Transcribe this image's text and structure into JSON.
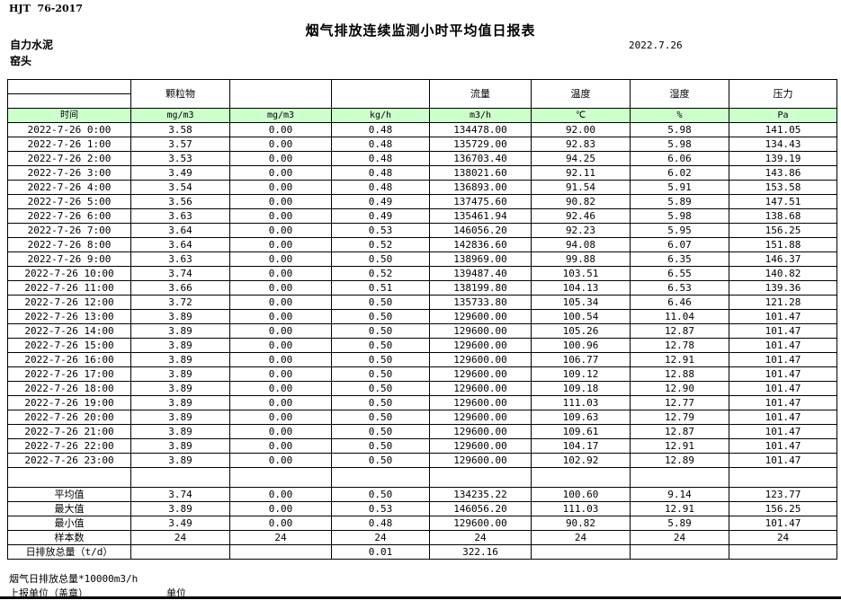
{
  "header": {
    "standard": "HJT  76-2017",
    "title": "烟气排放连续监测小时平均值日报表",
    "company": "自力水泥",
    "date": "2022.7.26",
    "location": "窑头"
  },
  "colors": {
    "header_green": "#ccffcc",
    "border": "#000000",
    "background": "#ffffff"
  },
  "table": {
    "columns": {
      "time_header": "时间",
      "pollutants": [
        "颗粒物",
        "",
        "",
        "流量",
        "温度",
        "湿度",
        "压力"
      ],
      "units": [
        "mg/m3",
        "mg/m3",
        "kg/h",
        "m3/h",
        "℃",
        "%",
        "Pa"
      ]
    },
    "rows": [
      {
        "time": "2022-7-26 0:00",
        "values": [
          "3.58",
          "0.00",
          "0.48",
          "134478.00",
          "92.00",
          "5.98",
          "141.05"
        ]
      },
      {
        "time": "2022-7-26 1:00",
        "values": [
          "3.57",
          "0.00",
          "0.48",
          "135729.00",
          "92.83",
          "5.98",
          "134.43"
        ]
      },
      {
        "time": "2022-7-26 2:00",
        "values": [
          "3.53",
          "0.00",
          "0.48",
          "136703.40",
          "94.25",
          "6.06",
          "139.19"
        ]
      },
      {
        "time": "2022-7-26 3:00",
        "values": [
          "3.49",
          "0.00",
          "0.48",
          "138021.60",
          "92.11",
          "6.02",
          "143.86"
        ]
      },
      {
        "time": "2022-7-26 4:00",
        "values": [
          "3.54",
          "0.00",
          "0.48",
          "136893.00",
          "91.54",
          "5.91",
          "153.58"
        ]
      },
      {
        "time": "2022-7-26 5:00",
        "values": [
          "3.56",
          "0.00",
          "0.49",
          "137475.60",
          "90.82",
          "5.89",
          "147.51"
        ]
      },
      {
        "time": "2022-7-26 6:00",
        "values": [
          "3.63",
          "0.00",
          "0.49",
          "135461.94",
          "92.46",
          "5.98",
          "138.68"
        ]
      },
      {
        "time": "2022-7-26 7:00",
        "values": [
          "3.64",
          "0.00",
          "0.53",
          "146056.20",
          "92.23",
          "5.95",
          "156.25"
        ]
      },
      {
        "time": "2022-7-26 8:00",
        "values": [
          "3.64",
          "0.00",
          "0.52",
          "142836.60",
          "94.08",
          "6.07",
          "151.88"
        ]
      },
      {
        "time": "2022-7-26 9:00",
        "values": [
          "3.63",
          "0.00",
          "0.50",
          "138969.00",
          "99.88",
          "6.35",
          "146.37"
        ]
      },
      {
        "time": "2022-7-26 10:00",
        "values": [
          "3.74",
          "0.00",
          "0.52",
          "139487.40",
          "103.51",
          "6.55",
          "140.82"
        ]
      },
      {
        "time": "2022-7-26 11:00",
        "values": [
          "3.66",
          "0.00",
          "0.51",
          "138199.80",
          "104.13",
          "6.53",
          "139.36"
        ]
      },
      {
        "time": "2022-7-26 12:00",
        "values": [
          "3.72",
          "0.00",
          "0.50",
          "135733.80",
          "105.34",
          "6.46",
          "121.28"
        ]
      },
      {
        "time": "2022-7-26 13:00",
        "values": [
          "3.89",
          "0.00",
          "0.50",
          "129600.00",
          "100.54",
          "11.04",
          "101.47"
        ]
      },
      {
        "time": "2022-7-26 14:00",
        "values": [
          "3.89",
          "0.00",
          "0.50",
          "129600.00",
          "105.26",
          "12.87",
          "101.47"
        ]
      },
      {
        "time": "2022-7-26 15:00",
        "values": [
          "3.89",
          "0.00",
          "0.50",
          "129600.00",
          "100.96",
          "12.78",
          "101.47"
        ]
      },
      {
        "time": "2022-7-26 16:00",
        "values": [
          "3.89",
          "0.00",
          "0.50",
          "129600.00",
          "106.77",
          "12.91",
          "101.47"
        ]
      },
      {
        "time": "2022-7-26 17:00",
        "values": [
          "3.89",
          "0.00",
          "0.50",
          "129600.00",
          "109.12",
          "12.88",
          "101.47"
        ]
      },
      {
        "time": "2022-7-26 18:00",
        "values": [
          "3.89",
          "0.00",
          "0.50",
          "129600.00",
          "109.18",
          "12.90",
          "101.47"
        ]
      },
      {
        "time": "2022-7-26 19:00",
        "values": [
          "3.89",
          "0.00",
          "0.50",
          "129600.00",
          "111.03",
          "12.77",
          "101.47"
        ]
      },
      {
        "time": "2022-7-26 20:00",
        "values": [
          "3.89",
          "0.00",
          "0.50",
          "129600.00",
          "109.63",
          "12.79",
          "101.47"
        ]
      },
      {
        "time": "2022-7-26 21:00",
        "values": [
          "3.89",
          "0.00",
          "0.50",
          "129600.00",
          "109.61",
          "12.87",
          "101.47"
        ]
      },
      {
        "time": "2022-7-26 22:00",
        "values": [
          "3.89",
          "0.00",
          "0.50",
          "129600.00",
          "104.17",
          "12.91",
          "101.47"
        ]
      },
      {
        "time": "2022-7-26 23:00",
        "values": [
          "3.89",
          "0.00",
          "0.50",
          "129600.00",
          "102.92",
          "12.89",
          "101.47"
        ]
      }
    ],
    "summary": [
      {
        "label": "平均值",
        "values": [
          "3.74",
          "0.00",
          "0.50",
          "134235.22",
          "100.60",
          "9.14",
          "123.77"
        ]
      },
      {
        "label": "最大值",
        "values": [
          "3.89",
          "0.00",
          "0.53",
          "146056.20",
          "111.03",
          "12.91",
          "156.25"
        ]
      },
      {
        "label": "最小值",
        "values": [
          "3.49",
          "0.00",
          "0.48",
          "129600.00",
          "90.82",
          "5.89",
          "101.47"
        ]
      },
      {
        "label": "样本数",
        "values": [
          "24",
          "24",
          "24",
          "24",
          "24",
          "24",
          "24"
        ]
      },
      {
        "label": "日排放总量（t/d）",
        "values": [
          "",
          "",
          "0.01",
          "322.16",
          "",
          "",
          ""
        ]
      }
    ]
  },
  "footer": {
    "note": "烟气日排放总量*10000m3/h",
    "report_unit_label": "上报单位（盖章）",
    "unit_label": "单位"
  }
}
